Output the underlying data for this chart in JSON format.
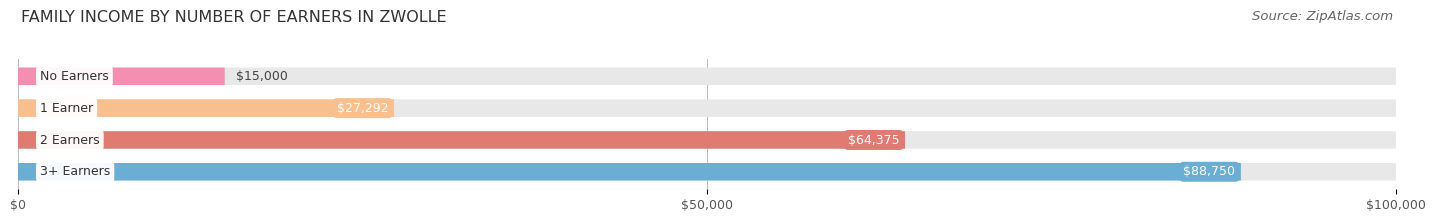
{
  "title": "FAMILY INCOME BY NUMBER OF EARNERS IN ZWOLLE",
  "source": "Source: ZipAtlas.com",
  "categories": [
    "No Earners",
    "1 Earner",
    "2 Earners",
    "3+ Earners"
  ],
  "values": [
    15000,
    27292,
    64375,
    88750
  ],
  "value_labels": [
    "$15,000",
    "$27,292",
    "$64,375",
    "$88,750"
  ],
  "bar_colors": [
    "#f48fb1",
    "#f9bf8f",
    "#e07b72",
    "#6aaed6"
  ],
  "bar_bg_color": "#e8e8e8",
  "xlim": [
    0,
    100000
  ],
  "xticks": [
    0,
    50000,
    100000
  ],
  "xtick_labels": [
    "$0",
    "$50,000",
    "$100,000"
  ],
  "bg_color": "#ffffff",
  "title_fontsize": 11.5,
  "source_fontsize": 9.5,
  "bar_label_fontsize": 9,
  "category_fontsize": 9,
  "tick_fontsize": 9
}
